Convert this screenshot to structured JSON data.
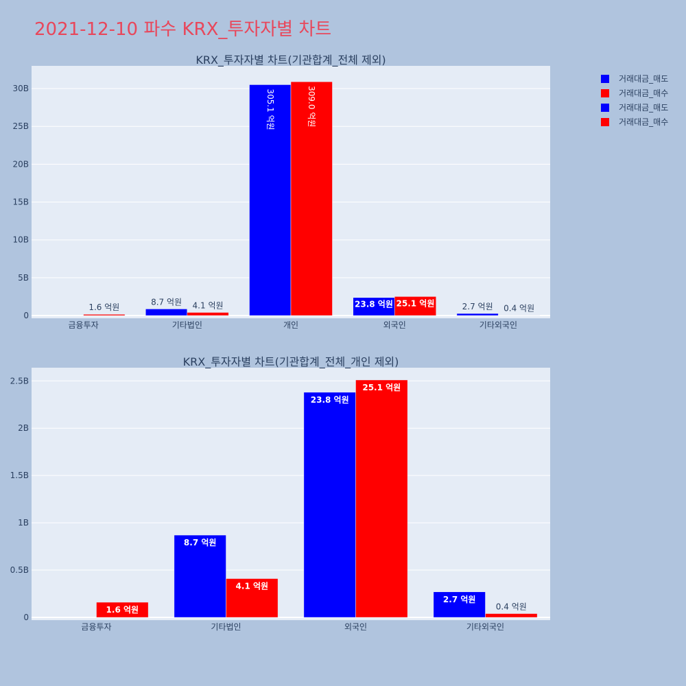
{
  "title": "2021-12-10 파수 KRX_투자자별 차트",
  "colors": {
    "sell": "#0000ff",
    "buy": "#ff0000",
    "plot_bg": "#e5ecf6",
    "page_bg": "#b0c4de"
  },
  "legend": {
    "placement": "top-right",
    "entries": [
      {
        "label": "거래대금_매도",
        "color": "#0000ff"
      },
      {
        "label": "거래대금_매수",
        "color": "#ff0000"
      },
      {
        "label": "거래대금_매도",
        "color": "#0000ff"
      },
      {
        "label": "거래대금_매수",
        "color": "#ff0000"
      }
    ]
  },
  "chart_data": [
    {
      "type": "bar",
      "title": "KRX_투자자별 차트(기관합계_전체 제외)",
      "categories": [
        "금융투자",
        "기타법인",
        "개인",
        "외국인",
        "기타외국인"
      ],
      "ylim": [
        0,
        33
      ],
      "yticks": [
        0,
        5,
        10,
        15,
        20,
        25,
        30
      ],
      "ytick_labels": [
        "0",
        "5B",
        "10B",
        "15B",
        "20B",
        "25B",
        "30B"
      ],
      "unit": "억 원 / B",
      "grid": true,
      "series": [
        {
          "name": "거래대금_매도",
          "color": "#0000ff",
          "values": [
            0,
            0.87,
            30.51,
            2.38,
            0.27
          ],
          "labels": [
            "",
            "8.7 억원",
            "305.1 억원",
            "23.8 억원",
            "2.7 억원"
          ]
        },
        {
          "name": "거래대금_매수",
          "color": "#ff0000",
          "values": [
            0.16,
            0.41,
            30.9,
            2.51,
            0.04
          ],
          "labels": [
            "1.6 억원",
            "4.1 억원",
            "309.0 억원",
            "25.1 억원",
            "0.4 억원"
          ]
        }
      ]
    },
    {
      "type": "bar",
      "title": "KRX_투자자별 차트(기관합계_전체_개인 제외)",
      "categories": [
        "금융투자",
        "기타법인",
        "외국인",
        "기타외국인"
      ],
      "ylim": [
        0,
        2.64
      ],
      "yticks": [
        0,
        0.5,
        1,
        1.5,
        2,
        2.5
      ],
      "ytick_labels": [
        "0",
        "0.5B",
        "1B",
        "1.5B",
        "2B",
        "2.5B"
      ],
      "grid": true,
      "series": [
        {
          "name": "거래대금_매도",
          "color": "#0000ff",
          "values": [
            0,
            0.87,
            2.38,
            0.27
          ],
          "labels": [
            "",
            "8.7 억원",
            "23.8 억원",
            "2.7 억원"
          ]
        },
        {
          "name": "거래대금_매수",
          "color": "#ff0000",
          "values": [
            0.16,
            0.41,
            2.51,
            0.04
          ],
          "labels": [
            "1.6 억원",
            "4.1 억원",
            "25.1 억원",
            "0.4 억원"
          ]
        }
      ]
    }
  ]
}
